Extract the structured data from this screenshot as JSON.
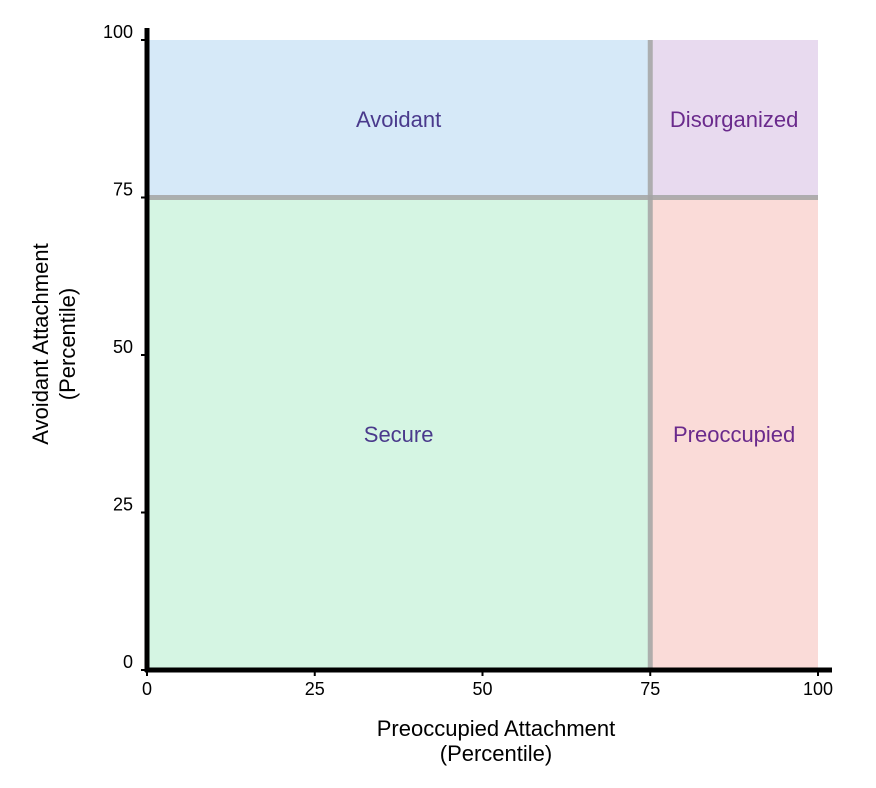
{
  "chart_data": {
    "type": "area",
    "xlabel": [
      "Preoccupied Attachment",
      "(Percentile)"
    ],
    "ylabel": [
      "Avoidant Attachment",
      "(Percentile)"
    ],
    "xlim": [
      0,
      100
    ],
    "ylim": [
      0,
      100
    ],
    "x_ticks": [
      0,
      25,
      50,
      75,
      100
    ],
    "y_ticks": [
      0,
      25,
      50,
      75,
      100
    ],
    "thresholds": {
      "x": 75,
      "y": 75
    },
    "threshold_line_color": "#a3a3a3",
    "grid": false,
    "regions": [
      {
        "label": "Secure",
        "x": [
          0,
          75
        ],
        "y": [
          0,
          75
        ],
        "fill": "#d5f5e3",
        "text_color": "#4a3a8c"
      },
      {
        "label": "Avoidant",
        "x": [
          0,
          75
        ],
        "y": [
          75,
          100
        ],
        "fill": "#d6e9f8",
        "text_color": "#4a3a8c"
      },
      {
        "label": "Preoccupied",
        "x": [
          75,
          100
        ],
        "y": [
          0,
          75
        ],
        "fill": "#fadbd8",
        "text_color": "#6a2a8c"
      },
      {
        "label": "Disorganized",
        "x": [
          75,
          100
        ],
        "y": [
          75,
          100
        ],
        "fill": "#e8daef",
        "text_color": "#6a2a8c"
      }
    ]
  }
}
